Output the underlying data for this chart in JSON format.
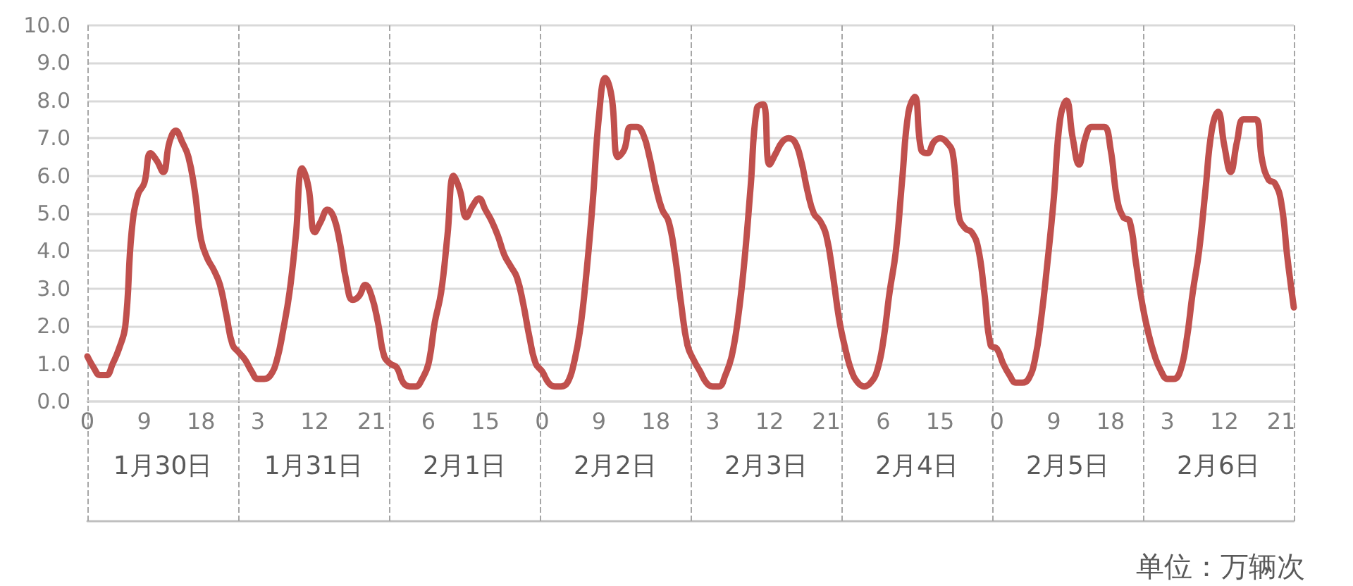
{
  "chart_data": {
    "type": "line",
    "color": "#c0504d",
    "line_style": "solid",
    "marker": "none",
    "grid": "y",
    "ylim": [
      0,
      10
    ],
    "yticks": [
      {
        "value": 0,
        "label": "0.0"
      },
      {
        "value": 1,
        "label": "1.0"
      },
      {
        "value": 2,
        "label": "2.0"
      },
      {
        "value": 3,
        "label": "3.0"
      },
      {
        "value": 4,
        "label": "4.0"
      },
      {
        "value": 5,
        "label": "5.0"
      },
      {
        "value": 6,
        "label": "6.0"
      },
      {
        "value": 7,
        "label": "7.0"
      },
      {
        "value": 8,
        "label": "8.0"
      },
      {
        "value": 9,
        "label": "9.0"
      },
      {
        "value": 10,
        "label": "10.0"
      }
    ],
    "categories": [
      "0",
      null,
      null,
      null,
      null,
      null,
      null,
      null,
      null,
      "9",
      null,
      null,
      null,
      null,
      null,
      null,
      null,
      null,
      "18",
      null,
      null,
      null,
      null,
      null,
      null,
      null,
      null,
      "3",
      null,
      null,
      null,
      null,
      null,
      null,
      null,
      null,
      "12",
      null,
      null,
      null,
      null,
      null,
      null,
      null,
      null,
      "21",
      null,
      null,
      null,
      null,
      null,
      null,
      null,
      null,
      "6",
      null,
      null,
      null,
      null,
      null,
      null,
      null,
      null,
      "15",
      null,
      null,
      null,
      null,
      null,
      null,
      null,
      null,
      "0",
      null,
      null,
      null,
      null,
      null,
      null,
      null,
      null,
      "9",
      null,
      null,
      null,
      null,
      null,
      null,
      null,
      null,
      "18",
      null,
      null,
      null,
      null,
      null,
      null,
      null,
      null,
      "3",
      null,
      null,
      null,
      null,
      null,
      null,
      null,
      null,
      "12",
      null,
      null,
      null,
      null,
      null,
      null,
      null,
      null,
      "21",
      null,
      null,
      null,
      null,
      null,
      null,
      null,
      null,
      "6",
      null,
      null,
      null,
      null,
      null,
      null,
      null,
      null,
      "15",
      null,
      null,
      null,
      null,
      null,
      null,
      null,
      null,
      "0",
      null,
      null,
      null,
      null,
      null,
      null,
      null,
      null,
      "9",
      null,
      null,
      null,
      null,
      null,
      null,
      null,
      null,
      "18",
      null,
      null,
      null,
      null,
      null,
      null,
      null,
      null,
      "3",
      null,
      null,
      null,
      null,
      null,
      null,
      null,
      null,
      "12",
      null,
      null,
      null,
      null,
      null,
      null,
      null,
      null,
      "21",
      null,
      null
    ],
    "values": [
      1.2,
      0.9,
      0.7,
      0.7,
      1.0,
      1.4,
      2.0,
      4.5,
      5.5,
      5.8,
      6.6,
      6.4,
      6.1,
      6.9,
      7.2,
      6.9,
      6.5,
      5.6,
      4.3,
      3.8,
      3.5,
      3.1,
      2.3,
      1.5,
      1.3,
      1.1,
      0.8,
      0.6,
      0.6,
      0.7,
      1.1,
      1.9,
      2.9,
      4.4,
      6.2,
      5.7,
      4.5,
      4.8,
      5.1,
      4.9,
      4.2,
      3.2,
      2.7,
      2.8,
      3.1,
      2.8,
      2.1,
      1.2,
      1.0,
      0.9,
      0.5,
      0.4,
      0.4,
      0.6,
      1.0,
      2.1,
      2.9,
      4.4,
      6.0,
      5.6,
      4.9,
      5.2,
      5.4,
      5.1,
      4.8,
      4.4,
      3.9,
      3.6,
      3.3,
      2.6,
      1.7,
      1.0,
      0.8,
      0.5,
      0.4,
      0.4,
      0.5,
      1.0,
      1.9,
      3.4,
      5.3,
      7.6,
      8.6,
      8.1,
      6.5,
      6.7,
      7.3,
      7.3,
      7.1,
      6.5,
      5.7,
      5.1,
      4.8,
      3.9,
      2.6,
      1.5,
      1.1,
      0.8,
      0.5,
      0.4,
      0.4,
      0.7,
      1.2,
      2.2,
      3.7,
      5.7,
      7.8,
      7.9,
      6.3,
      6.6,
      6.9,
      7.0,
      6.9,
      6.4,
      5.6,
      5.0,
      4.8,
      4.4,
      3.4,
      2.2,
      1.4,
      0.8,
      0.5,
      0.4,
      0.5,
      0.8,
      1.6,
      2.9,
      4.0,
      5.9,
      7.7,
      8.1,
      6.7,
      6.6,
      6.9,
      7.0,
      6.9,
      6.6,
      4.9,
      4.6,
      4.5,
      4.1,
      2.9,
      1.5,
      1.4,
      1.0,
      0.7,
      0.5,
      0.5,
      0.6,
      1.1,
      2.2,
      3.7,
      5.4,
      7.5,
      8.0,
      7.0,
      6.3,
      7.0,
      7.3,
      7.3,
      7.3,
      6.7,
      5.4,
      4.9,
      4.8,
      3.7,
      2.6,
      1.8,
      1.2,
      0.8,
      0.6,
      0.6,
      0.8,
      1.6,
      2.9,
      4.0,
      5.6,
      7.2,
      7.7,
      6.8,
      6.1,
      6.9,
      7.5,
      7.5,
      7.5,
      6.4,
      5.9,
      5.8,
      5.3,
      3.8,
      2.5
    ],
    "annotations": [
      "1月30日",
      "1月31日",
      "2月1日",
      "2月2日",
      "2月3日",
      "2月4日",
      "2月5日",
      "2月6日",
      "单位：万辆次"
    ]
  }
}
